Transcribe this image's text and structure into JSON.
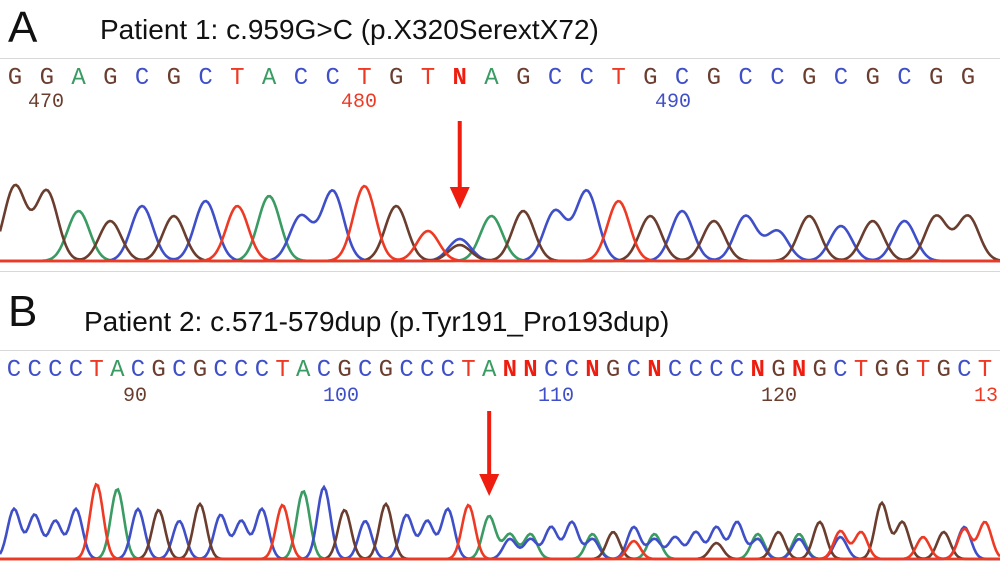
{
  "colors": {
    "A": "#3a9b63",
    "C": "#3f4fc8",
    "G": "#6a3d2e",
    "T": "#ee3a24",
    "N": "#ee1d0f",
    "arrow": "#ee1d0f"
  },
  "panel_a": {
    "letter": "A",
    "title": "Patient 1: c.959G>C (p.X320SerextX72)",
    "sequence": "GGAGCGCTACCTGTNAGCCTGCGCCGCGCGG",
    "positions": [
      {
        "label": "470",
        "color": "#6a3d2e"
      },
      {
        "label": "480",
        "color": "#ee3a24"
      },
      {
        "label": "490",
        "color": "#3f4fc8"
      }
    ]
  },
  "panel_b": {
    "letter": "B",
    "title": "Patient 2: c.571-579dup (p.Tyr191_Pro193dup)",
    "sequence": "CCCCTACGCGCCCTACGCGCCCTANNCCNGCNCCCCNGNGCTGGTGCT",
    "positions": [
      {
        "label": "90",
        "color": "#6a3d2e"
      },
      {
        "label": "100",
        "color": "#3f4fc8"
      },
      {
        "label": "110",
        "color": "#3f4fc8"
      },
      {
        "label": "120",
        "color": "#6a3d2e"
      },
      {
        "label": "13",
        "color": "#ee3a24"
      }
    ]
  }
}
